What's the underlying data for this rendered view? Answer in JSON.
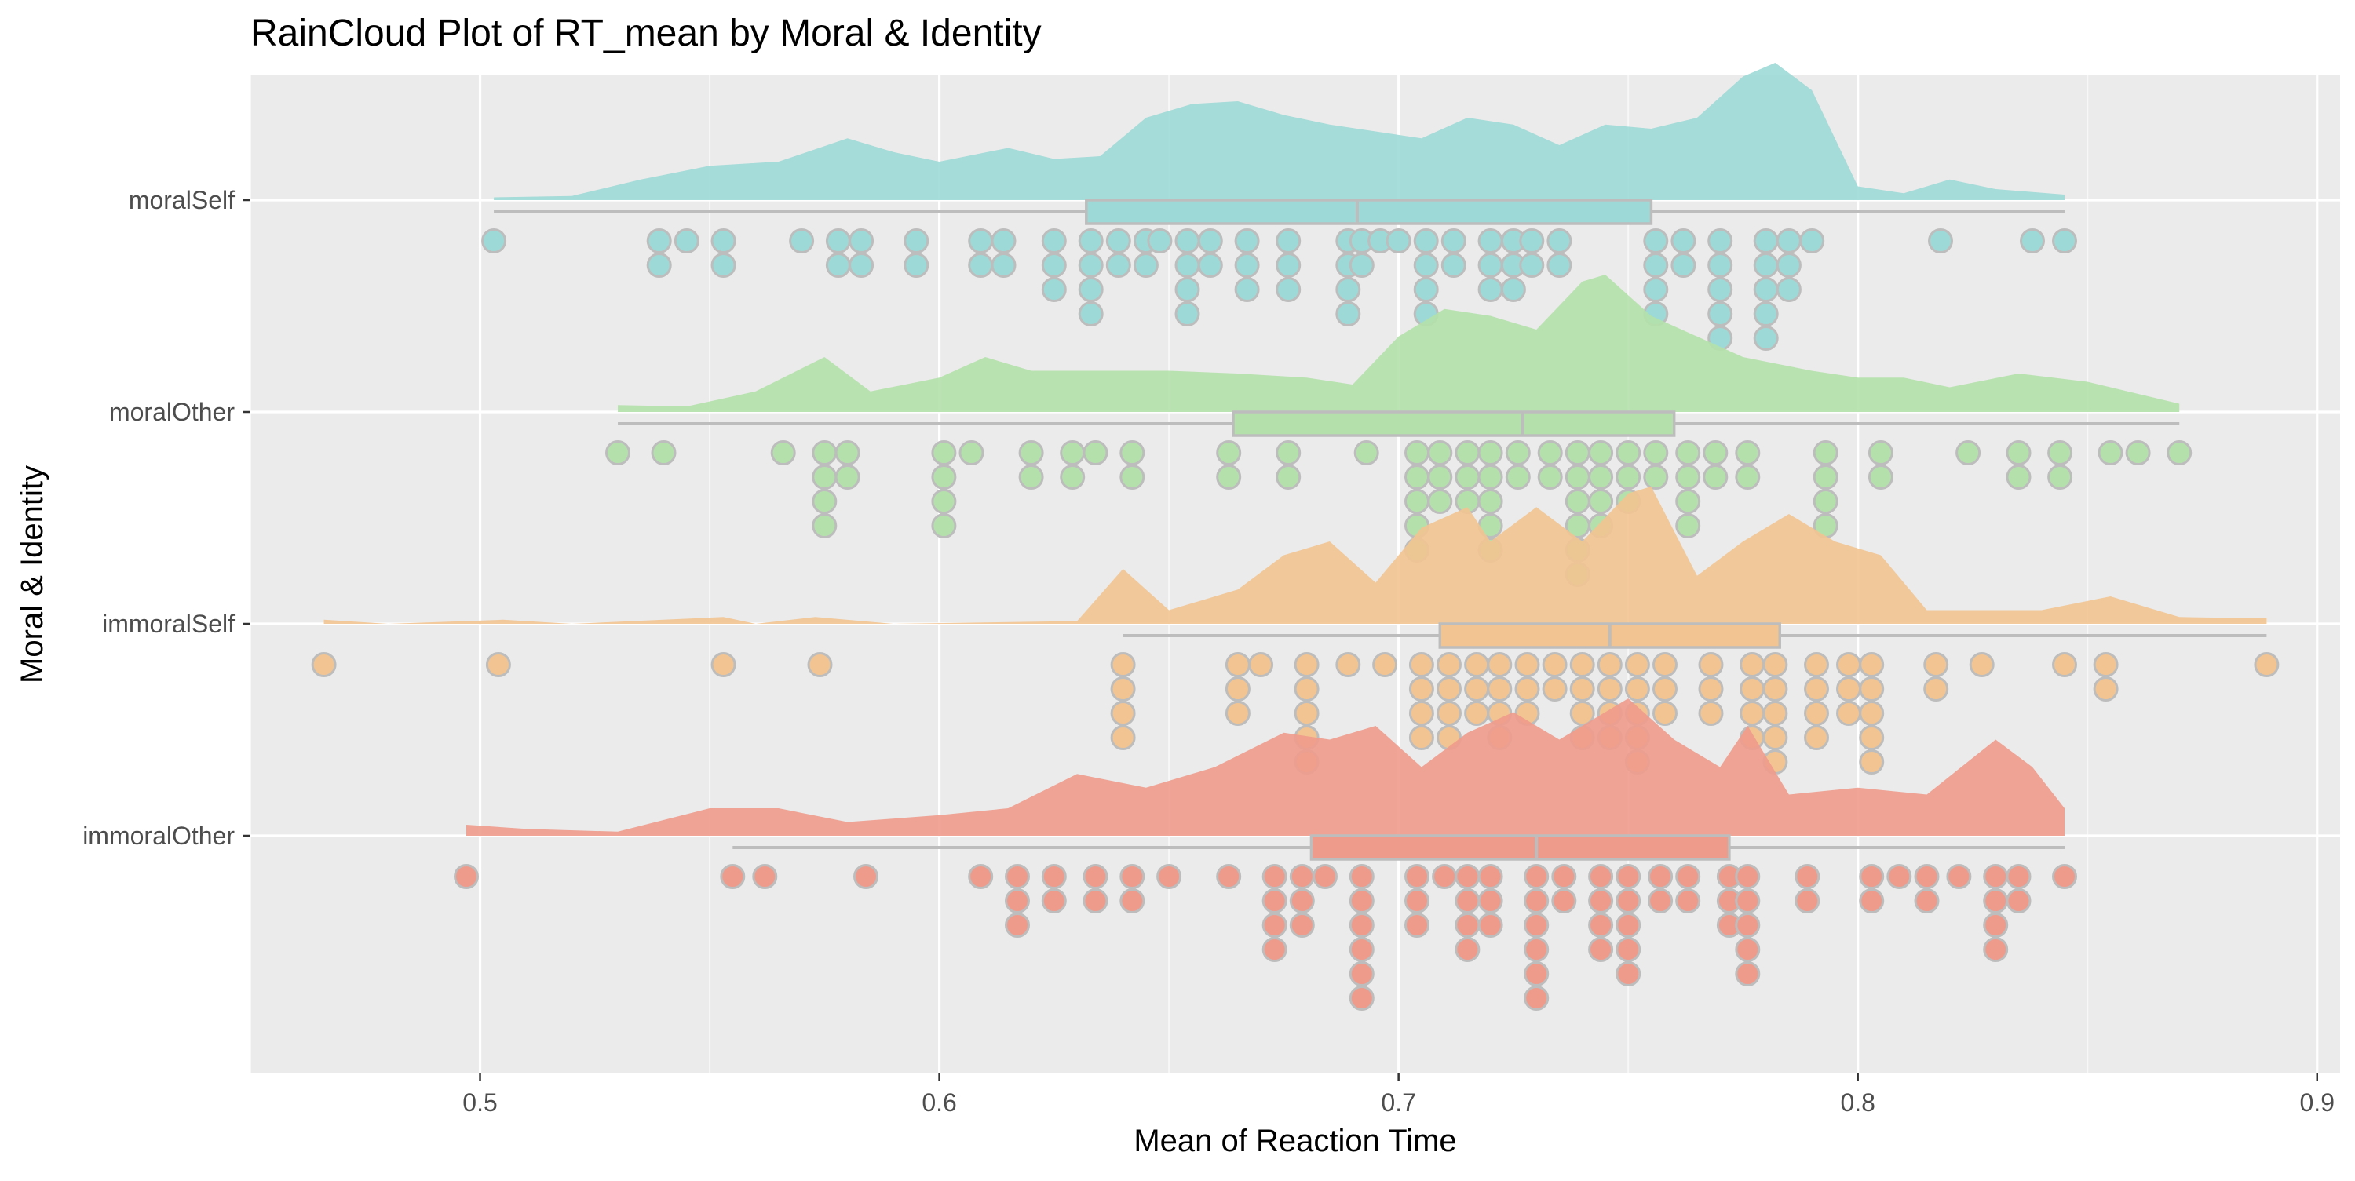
{
  "chart_data": {
    "type": "raincloud",
    "title": "RainCloud Plot of RT_mean by Moral & Identity",
    "xlabel": "Mean of Reaction Time",
    "ylabel": "Moral & Identity",
    "xlim": [
      0.45,
      0.905
    ],
    "x_ticks": [
      0.5,
      0.6,
      0.7,
      0.8,
      0.9
    ],
    "x_tick_labels": [
      "0.5",
      "0.6",
      "0.7",
      "0.8",
      "0.9"
    ],
    "grid": true,
    "legend": "none",
    "groups": [
      {
        "name": "moralSelf",
        "color": "#9dd9d6",
        "box": {
          "whisker_low": 0.503,
          "q1": 0.632,
          "median": 0.691,
          "q3": 0.755,
          "whisker_high": 0.845
        },
        "density": [
          [
            0.503,
            0.02
          ],
          [
            0.52,
            0.03
          ],
          [
            0.535,
            0.15
          ],
          [
            0.55,
            0.25
          ],
          [
            0.565,
            0.28
          ],
          [
            0.58,
            0.45
          ],
          [
            0.59,
            0.35
          ],
          [
            0.6,
            0.28
          ],
          [
            0.615,
            0.38
          ],
          [
            0.625,
            0.3
          ],
          [
            0.635,
            0.32
          ],
          [
            0.645,
            0.6
          ],
          [
            0.655,
            0.7
          ],
          [
            0.665,
            0.72
          ],
          [
            0.675,
            0.62
          ],
          [
            0.685,
            0.55
          ],
          [
            0.695,
            0.5
          ],
          [
            0.705,
            0.45
          ],
          [
            0.715,
            0.6
          ],
          [
            0.725,
            0.55
          ],
          [
            0.735,
            0.4
          ],
          [
            0.745,
            0.55
          ],
          [
            0.755,
            0.52
          ],
          [
            0.765,
            0.6
          ],
          [
            0.775,
            0.9
          ],
          [
            0.782,
            1.0
          ],
          [
            0.79,
            0.8
          ],
          [
            0.8,
            0.1
          ],
          [
            0.81,
            0.05
          ],
          [
            0.82,
            0.15
          ],
          [
            0.83,
            0.08
          ],
          [
            0.845,
            0.04
          ]
        ],
        "points": [
          0.503,
          0.539,
          0.539,
          0.545,
          0.553,
          0.553,
          0.57,
          0.578,
          0.578,
          0.583,
          0.583,
          0.595,
          0.595,
          0.609,
          0.609,
          0.614,
          0.614,
          0.625,
          0.625,
          0.625,
          0.633,
          0.633,
          0.633,
          0.633,
          0.639,
          0.639,
          0.645,
          0.645,
          0.648,
          0.654,
          0.654,
          0.654,
          0.654,
          0.659,
          0.659,
          0.667,
          0.667,
          0.667,
          0.676,
          0.676,
          0.676,
          0.689,
          0.689,
          0.689,
          0.689,
          0.692,
          0.692,
          0.696,
          0.7,
          0.706,
          0.706,
          0.706,
          0.706,
          0.712,
          0.712,
          0.72,
          0.72,
          0.72,
          0.725,
          0.725,
          0.725,
          0.729,
          0.729,
          0.735,
          0.735,
          0.756,
          0.756,
          0.756,
          0.756,
          0.762,
          0.762,
          0.77,
          0.77,
          0.77,
          0.77,
          0.77,
          0.78,
          0.78,
          0.78,
          0.78,
          0.78,
          0.785,
          0.785,
          0.785,
          0.79,
          0.818,
          0.838,
          0.845
        ]
      },
      {
        "name": "moralOther",
        "color": "#b4e1ab",
        "box": {
          "whisker_low": 0.53,
          "q1": 0.664,
          "median": 0.727,
          "q3": 0.76,
          "whisker_high": 0.87
        },
        "density": [
          [
            0.53,
            0.05
          ],
          [
            0.545,
            0.04
          ],
          [
            0.56,
            0.15
          ],
          [
            0.575,
            0.4
          ],
          [
            0.585,
            0.15
          ],
          [
            0.6,
            0.25
          ],
          [
            0.61,
            0.4
          ],
          [
            0.62,
            0.3
          ],
          [
            0.635,
            0.3
          ],
          [
            0.65,
            0.3
          ],
          [
            0.665,
            0.28
          ],
          [
            0.68,
            0.25
          ],
          [
            0.69,
            0.2
          ],
          [
            0.7,
            0.55
          ],
          [
            0.71,
            0.75
          ],
          [
            0.72,
            0.7
          ],
          [
            0.73,
            0.6
          ],
          [
            0.74,
            0.95
          ],
          [
            0.745,
            1.0
          ],
          [
            0.755,
            0.7
          ],
          [
            0.765,
            0.55
          ],
          [
            0.775,
            0.4
          ],
          [
            0.79,
            0.3
          ],
          [
            0.8,
            0.25
          ],
          [
            0.81,
            0.25
          ],
          [
            0.82,
            0.18
          ],
          [
            0.835,
            0.28
          ],
          [
            0.85,
            0.22
          ],
          [
            0.87,
            0.06
          ]
        ],
        "points": [
          0.53,
          0.54,
          0.566,
          0.575,
          0.575,
          0.575,
          0.575,
          0.58,
          0.58,
          0.601,
          0.601,
          0.601,
          0.601,
          0.607,
          0.62,
          0.62,
          0.629,
          0.629,
          0.634,
          0.642,
          0.642,
          0.663,
          0.663,
          0.676,
          0.676,
          0.693,
          0.704,
          0.704,
          0.704,
          0.704,
          0.704,
          0.709,
          0.709,
          0.709,
          0.715,
          0.715,
          0.715,
          0.72,
          0.72,
          0.72,
          0.72,
          0.72,
          0.726,
          0.726,
          0.733,
          0.733,
          0.739,
          0.739,
          0.739,
          0.739,
          0.739,
          0.739,
          0.744,
          0.744,
          0.744,
          0.744,
          0.75,
          0.75,
          0.75,
          0.756,
          0.756,
          0.763,
          0.763,
          0.763,
          0.763,
          0.769,
          0.769,
          0.776,
          0.776,
          0.793,
          0.793,
          0.793,
          0.793,
          0.805,
          0.805,
          0.824,
          0.835,
          0.835,
          0.844,
          0.844,
          0.855,
          0.861,
          0.87
        ]
      },
      {
        "name": "immoralSelf",
        "color": "#f2c491",
        "box": {
          "whisker_low": 0.64,
          "q1": 0.709,
          "median": 0.746,
          "q3": 0.783,
          "whisker_high": 0.889
        },
        "density": [
          [
            0.466,
            0.03
          ],
          [
            0.48,
            0.0
          ],
          [
            0.505,
            0.03
          ],
          [
            0.52,
            0.0
          ],
          [
            0.553,
            0.05
          ],
          [
            0.56,
            0.0
          ],
          [
            0.573,
            0.05
          ],
          [
            0.59,
            0.0
          ],
          [
            0.63,
            0.02
          ],
          [
            0.64,
            0.4
          ],
          [
            0.65,
            0.1
          ],
          [
            0.665,
            0.25
          ],
          [
            0.675,
            0.5
          ],
          [
            0.685,
            0.6
          ],
          [
            0.695,
            0.3
          ],
          [
            0.705,
            0.7
          ],
          [
            0.715,
            0.85
          ],
          [
            0.72,
            0.6
          ],
          [
            0.73,
            0.85
          ],
          [
            0.74,
            0.6
          ],
          [
            0.75,
            0.95
          ],
          [
            0.755,
            1.0
          ],
          [
            0.765,
            0.35
          ],
          [
            0.775,
            0.6
          ],
          [
            0.785,
            0.8
          ],
          [
            0.795,
            0.6
          ],
          [
            0.805,
            0.5
          ],
          [
            0.815,
            0.1
          ],
          [
            0.84,
            0.1
          ],
          [
            0.855,
            0.2
          ],
          [
            0.87,
            0.05
          ],
          [
            0.889,
            0.04
          ]
        ],
        "points": [
          0.466,
          0.504,
          0.553,
          0.574,
          0.64,
          0.64,
          0.64,
          0.64,
          0.665,
          0.665,
          0.665,
          0.67,
          0.68,
          0.68,
          0.68,
          0.68,
          0.68,
          0.689,
          0.697,
          0.705,
          0.705,
          0.705,
          0.705,
          0.711,
          0.711,
          0.711,
          0.711,
          0.717,
          0.717,
          0.717,
          0.722,
          0.722,
          0.722,
          0.722,
          0.728,
          0.728,
          0.728,
          0.734,
          0.734,
          0.74,
          0.74,
          0.74,
          0.74,
          0.746,
          0.746,
          0.746,
          0.746,
          0.752,
          0.752,
          0.752,
          0.752,
          0.752,
          0.758,
          0.758,
          0.758,
          0.768,
          0.768,
          0.768,
          0.777,
          0.777,
          0.777,
          0.777,
          0.782,
          0.782,
          0.782,
          0.782,
          0.782,
          0.791,
          0.791,
          0.791,
          0.791,
          0.798,
          0.798,
          0.798,
          0.803,
          0.803,
          0.803,
          0.803,
          0.803,
          0.817,
          0.817,
          0.827,
          0.845,
          0.854,
          0.854,
          0.889
        ]
      },
      {
        "name": "immoralOther",
        "color": "#ee9b8c",
        "box": {
          "whisker_low": 0.555,
          "q1": 0.681,
          "median": 0.73,
          "q3": 0.772,
          "whisker_high": 0.845
        },
        "density": [
          [
            0.497,
            0.08
          ],
          [
            0.51,
            0.05
          ],
          [
            0.53,
            0.03
          ],
          [
            0.55,
            0.2
          ],
          [
            0.565,
            0.2
          ],
          [
            0.58,
            0.1
          ],
          [
            0.6,
            0.15
          ],
          [
            0.615,
            0.2
          ],
          [
            0.63,
            0.45
          ],
          [
            0.645,
            0.35
          ],
          [
            0.66,
            0.5
          ],
          [
            0.675,
            0.75
          ],
          [
            0.685,
            0.7
          ],
          [
            0.695,
            0.8
          ],
          [
            0.705,
            0.5
          ],
          [
            0.715,
            0.75
          ],
          [
            0.725,
            0.9
          ],
          [
            0.735,
            0.7
          ],
          [
            0.75,
            1.0
          ],
          [
            0.76,
            0.7
          ],
          [
            0.77,
            0.5
          ],
          [
            0.776,
            0.8
          ],
          [
            0.785,
            0.3
          ],
          [
            0.8,
            0.35
          ],
          [
            0.815,
            0.3
          ],
          [
            0.83,
            0.7
          ],
          [
            0.838,
            0.5
          ],
          [
            0.845,
            0.2
          ]
        ],
        "points": [
          0.497,
          0.555,
          0.562,
          0.584,
          0.609,
          0.617,
          0.617,
          0.617,
          0.625,
          0.625,
          0.634,
          0.634,
          0.642,
          0.642,
          0.65,
          0.663,
          0.673,
          0.673,
          0.673,
          0.673,
          0.679,
          0.679,
          0.679,
          0.684,
          0.692,
          0.692,
          0.692,
          0.692,
          0.692,
          0.692,
          0.704,
          0.704,
          0.704,
          0.71,
          0.715,
          0.715,
          0.715,
          0.715,
          0.72,
          0.72,
          0.72,
          0.73,
          0.73,
          0.73,
          0.73,
          0.73,
          0.73,
          0.736,
          0.736,
          0.744,
          0.744,
          0.744,
          0.744,
          0.75,
          0.75,
          0.75,
          0.75,
          0.75,
          0.757,
          0.757,
          0.763,
          0.763,
          0.772,
          0.772,
          0.772,
          0.776,
          0.776,
          0.776,
          0.776,
          0.776,
          0.789,
          0.789,
          0.803,
          0.803,
          0.809,
          0.815,
          0.815,
          0.822,
          0.83,
          0.83,
          0.83,
          0.83,
          0.835,
          0.835,
          0.845
        ]
      }
    ]
  }
}
